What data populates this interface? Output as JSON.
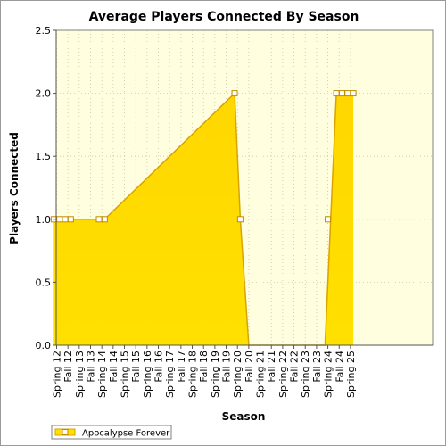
{
  "chart_data": {
    "type": "area",
    "title": "Average Players Connected By Season",
    "xlabel": "Season",
    "ylabel": "Players Connected",
    "ylim": [
      0,
      2.5
    ],
    "yticks": [
      "0.0",
      "0.5",
      "1.0",
      "1.5",
      "2.0",
      "2.5"
    ],
    "grid": true,
    "legend_position": "bottom-left",
    "colors": {
      "area": "#ffe000",
      "line": "#d9a300",
      "plot_background": "#ffffe0",
      "grid": "#c8c8a0",
      "marker_fill": "#ffffff",
      "marker_stroke": "#c08a00"
    },
    "categories": [
      "Spring 12",
      "Fall 12",
      "Spring 13",
      "Fall 13",
      "Spring 14",
      "Fall 14",
      "Spring 15",
      "Fall 15",
      "Spring 16",
      "Fall 16",
      "Spring 17",
      "Fall 17",
      "Spring 18",
      "Fall 18",
      "Spring 19",
      "Fall 19",
      "Spring 20",
      "Fall 20",
      "Spring 21",
      "Fall 21",
      "Spring 22",
      "Fall 22",
      "Spring 23",
      "Fall 23",
      "Spring 24",
      "Fall 24",
      "Spring 25"
    ],
    "series": [
      {
        "name": "Apocalypse Forever",
        "points": [
          {
            "x": "Spring 12",
            "y": 1.0
          },
          {
            "x": "Spring 12",
            "y": 1.0
          },
          {
            "x": "Spring 12",
            "y": 1.0
          },
          {
            "x": "Fall 12",
            "y": 1.0
          },
          {
            "x": "Fall 12",
            "y": 1.0
          },
          {
            "x": "Spring 13",
            "y": 1.0
          },
          {
            "x": "Fall 13",
            "y": 1.0
          },
          {
            "x": "Spring 14",
            "y": 1.0
          },
          {
            "x": "Spring 14",
            "y": 1.0
          },
          {
            "x": "Spring 20",
            "y": 2.0
          },
          {
            "x": "Spring 20",
            "y": 1.0
          },
          {
            "x": "Fall 20",
            "y": 0.0
          },
          {
            "x": "Spring 24",
            "y": 0.0
          },
          {
            "x": "Spring 24",
            "y": 1.0
          },
          {
            "x": "Fall 24",
            "y": 2.0
          },
          {
            "x": "Fall 24",
            "y": 2.0
          },
          {
            "x": "Spring 25",
            "y": 2.0
          },
          {
            "x": "Spring 25",
            "y": 2.0
          }
        ],
        "markers": [
          {
            "x": "Spring 12",
            "y": 1.0
          },
          {
            "x": "Spring 12",
            "y": 1.0
          },
          {
            "x": "Fall 12",
            "y": 1.0
          },
          {
            "x": "Fall 12",
            "y": 1.0
          },
          {
            "x": "Spring 14",
            "y": 1.0
          },
          {
            "x": "Spring 14",
            "y": 1.0
          },
          {
            "x": "Spring 20",
            "y": 2.0
          },
          {
            "x": "Spring 20",
            "y": 1.0
          },
          {
            "x": "Spring 24",
            "y": 1.0
          },
          {
            "x": "Fall 24",
            "y": 2.0
          },
          {
            "x": "Fall 24",
            "y": 2.0
          },
          {
            "x": "Spring 25",
            "y": 2.0
          },
          {
            "x": "Spring 25",
            "y": 2.0
          }
        ]
      }
    ]
  }
}
